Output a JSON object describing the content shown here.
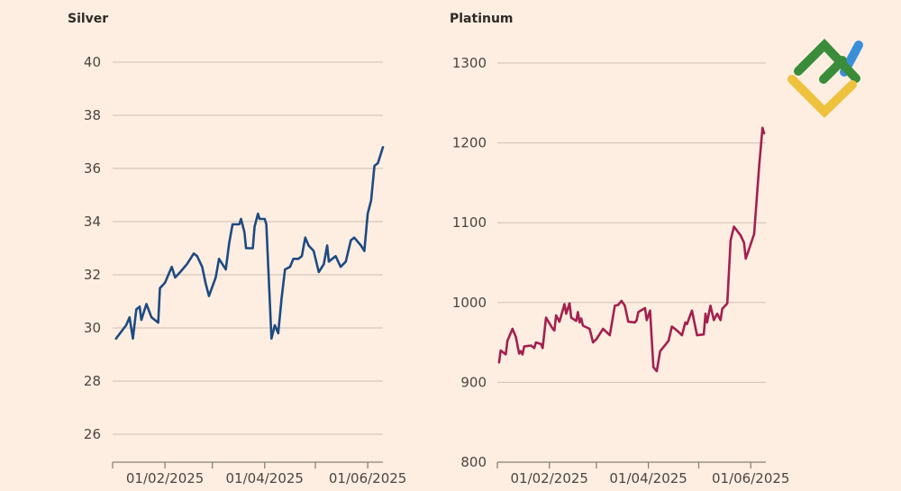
{
  "colors": {
    "background": "#fdeee1",
    "silver": "#1e4a82",
    "platinum": "#a3204f",
    "grid": "#cdbfb3",
    "logo_green": "#3a8c3a",
    "logo_blue": "#3b8fd9",
    "logo_yellow": "#eec23c"
  },
  "logo": {
    "icon": "brand-logo-icon"
  },
  "chart_data": [
    {
      "type": "line",
      "title": "Silver",
      "xlabel": "",
      "ylabel": "",
      "xlim": [
        "2025-01-01",
        "2025-06-10"
      ],
      "ylim": [
        25,
        40
      ],
      "yticks": [
        26,
        28,
        30,
        32,
        34,
        36,
        38,
        40
      ],
      "ytick_labels": [
        "26",
        "28",
        "30",
        "32",
        "34",
        "36",
        "38",
        "40"
      ],
      "xticks": [
        "2025-01-01",
        "2025-02-01",
        "2025-03-01",
        "2025-04-01",
        "2025-05-01",
        "2025-06-01"
      ],
      "xtick_labels": [
        {
          "date": "2025-02-01",
          "label": "01/02/2025"
        },
        {
          "date": "2025-04-01",
          "label": "01/04/2025"
        },
        {
          "date": "2025-06-01",
          "label": "01/06/2025"
        }
      ],
      "grid": true,
      "series": [
        {
          "color": "#1e4a82",
          "points": [
            [
              "2025-01-03",
              29.6
            ],
            [
              "2025-01-09",
              30.1
            ],
            [
              "2025-01-11",
              30.4
            ],
            [
              "2025-01-13",
              29.6
            ],
            [
              "2025-01-15",
              30.7
            ],
            [
              "2025-01-17",
              30.8
            ],
            [
              "2025-01-18",
              30.3
            ],
            [
              "2025-01-21",
              30.9
            ],
            [
              "2025-01-24",
              30.4
            ],
            [
              "2025-01-28",
              30.2
            ],
            [
              "2025-01-29",
              31.5
            ],
            [
              "2025-02-01",
              31.7
            ],
            [
              "2025-02-05",
              32.3
            ],
            [
              "2025-02-07",
              31.9
            ],
            [
              "2025-02-10",
              32.1
            ],
            [
              "2025-02-14",
              32.4
            ],
            [
              "2025-02-18",
              32.8
            ],
            [
              "2025-02-20",
              32.7
            ],
            [
              "2025-02-23",
              32.3
            ],
            [
              "2025-02-25",
              31.7
            ],
            [
              "2025-02-27",
              31.2
            ],
            [
              "2025-03-03",
              31.9
            ],
            [
              "2025-03-05",
              32.6
            ],
            [
              "2025-03-09",
              32.2
            ],
            [
              "2025-03-11",
              33.2
            ],
            [
              "2025-03-13",
              33.9
            ],
            [
              "2025-03-17",
              33.9
            ],
            [
              "2025-03-18",
              34.1
            ],
            [
              "2025-03-20",
              33.6
            ],
            [
              "2025-03-21",
              33.0
            ],
            [
              "2025-03-25",
              33.0
            ],
            [
              "2025-03-26",
              33.8
            ],
            [
              "2025-03-28",
              34.3
            ],
            [
              "2025-03-29",
              34.1
            ],
            [
              "2025-04-01",
              34.1
            ],
            [
              "2025-04-02",
              33.9
            ],
            [
              "2025-04-05",
              29.6
            ],
            [
              "2025-04-07",
              30.1
            ],
            [
              "2025-04-09",
              29.8
            ],
            [
              "2025-04-11",
              31.1
            ],
            [
              "2025-04-13",
              32.2
            ],
            [
              "2025-04-16",
              32.3
            ],
            [
              "2025-04-18",
              32.6
            ],
            [
              "2025-04-21",
              32.6
            ],
            [
              "2025-04-23",
              32.7
            ],
            [
              "2025-04-25",
              33.4
            ],
            [
              "2025-04-27",
              33.1
            ],
            [
              "2025-04-30",
              32.9
            ],
            [
              "2025-05-03",
              32.1
            ],
            [
              "2025-05-06",
              32.4
            ],
            [
              "2025-05-08",
              33.1
            ],
            [
              "2025-05-09",
              32.5
            ],
            [
              "2025-05-13",
              32.7
            ],
            [
              "2025-05-16",
              32.3
            ],
            [
              "2025-05-19",
              32.5
            ],
            [
              "2025-05-22",
              33.3
            ],
            [
              "2025-05-24",
              33.4
            ],
            [
              "2025-05-28",
              33.1
            ],
            [
              "2025-05-30",
              32.9
            ],
            [
              "2025-06-01",
              34.3
            ],
            [
              "2025-06-03",
              34.8
            ],
            [
              "2025-06-05",
              36.1
            ],
            [
              "2025-06-07",
              36.2
            ],
            [
              "2025-06-10",
              36.8
            ]
          ]
        }
      ]
    },
    {
      "type": "line",
      "title": "Platinum",
      "xlabel": "",
      "ylabel": "",
      "xlim": [
        "2025-01-01",
        "2025-06-10"
      ],
      "ylim": [
        800,
        1300
      ],
      "yticks": [
        800,
        900,
        1000,
        1100,
        1200,
        1300
      ],
      "ytick_labels": [
        "800",
        "900",
        "1000",
        "1100",
        "1200",
        "1300"
      ],
      "xticks": [
        "2025-01-01",
        "2025-02-01",
        "2025-03-01",
        "2025-04-01",
        "2025-05-01",
        "2025-06-01"
      ],
      "xtick_labels": [
        {
          "date": "2025-02-01",
          "label": "01/02/2025"
        },
        {
          "date": "2025-04-01",
          "label": "01/04/2025"
        },
        {
          "date": "2025-06-01",
          "label": "01/06/2025"
        }
      ],
      "grid": true,
      "series": [
        {
          "color": "#a3204f",
          "points": [
            [
              "2025-01-02",
              925
            ],
            [
              "2025-01-03",
              940
            ],
            [
              "2025-01-06",
              935
            ],
            [
              "2025-01-07",
              952
            ],
            [
              "2025-01-10",
              967
            ],
            [
              "2025-01-12",
              957
            ],
            [
              "2025-01-14",
              936
            ],
            [
              "2025-01-15",
              939
            ],
            [
              "2025-01-16",
              935
            ],
            [
              "2025-01-17",
              945
            ],
            [
              "2025-01-21",
              946
            ],
            [
              "2025-01-23",
              943
            ],
            [
              "2025-01-24",
              950
            ],
            [
              "2025-01-27",
              948
            ],
            [
              "2025-01-28",
              943
            ],
            [
              "2025-01-30",
              981
            ],
            [
              "2025-02-03",
              967
            ],
            [
              "2025-02-04",
              965
            ],
            [
              "2025-02-05",
              984
            ],
            [
              "2025-02-07",
              976
            ],
            [
              "2025-02-10",
              998
            ],
            [
              "2025-02-11",
              986
            ],
            [
              "2025-02-13",
              999
            ],
            [
              "2025-02-14",
              981
            ],
            [
              "2025-02-17",
              977
            ],
            [
              "2025-02-18",
              988
            ],
            [
              "2025-02-19",
              975
            ],
            [
              "2025-02-20",
              980
            ],
            [
              "2025-02-21",
              971
            ],
            [
              "2025-02-25",
              967
            ],
            [
              "2025-02-27",
              950
            ],
            [
              "2025-03-01",
              954
            ],
            [
              "2025-03-05",
              967
            ],
            [
              "2025-03-09",
              959
            ],
            [
              "2025-03-12",
              996
            ],
            [
              "2025-03-14",
              997
            ],
            [
              "2025-03-16",
              1002
            ],
            [
              "2025-03-18",
              996
            ],
            [
              "2025-03-20",
              976
            ],
            [
              "2025-03-24",
              975
            ],
            [
              "2025-03-25",
              978
            ],
            [
              "2025-03-26",
              988
            ],
            [
              "2025-03-30",
              993
            ],
            [
              "2025-03-31",
              978
            ],
            [
              "2025-04-02",
              990
            ],
            [
              "2025-04-04",
              919
            ],
            [
              "2025-04-06",
              914
            ],
            [
              "2025-04-08",
              939
            ],
            [
              "2025-04-13",
              952
            ],
            [
              "2025-04-15",
              970
            ],
            [
              "2025-04-18",
              965
            ],
            [
              "2025-04-21",
              959
            ],
            [
              "2025-04-23",
              975
            ],
            [
              "2025-04-24",
              973
            ],
            [
              "2025-04-27",
              990
            ],
            [
              "2025-04-30",
              959
            ],
            [
              "2025-05-04",
              960
            ],
            [
              "2025-05-05",
              986
            ],
            [
              "2025-05-06",
              975
            ],
            [
              "2025-05-08",
              996
            ],
            [
              "2025-05-10",
              978
            ],
            [
              "2025-05-12",
              986
            ],
            [
              "2025-05-14",
              978
            ],
            [
              "2025-05-15",
              992
            ],
            [
              "2025-05-18",
              999
            ],
            [
              "2025-05-20",
              1078
            ],
            [
              "2025-05-22",
              1095
            ],
            [
              "2025-05-26",
              1084
            ],
            [
              "2025-05-28",
              1075
            ],
            [
              "2025-05-29",
              1055
            ],
            [
              "2025-05-31",
              1067
            ],
            [
              "2025-06-03",
              1086
            ],
            [
              "2025-06-06",
              1170
            ],
            [
              "2025-06-08",
              1219
            ],
            [
              "2025-06-09",
              1212
            ]
          ]
        }
      ]
    }
  ]
}
